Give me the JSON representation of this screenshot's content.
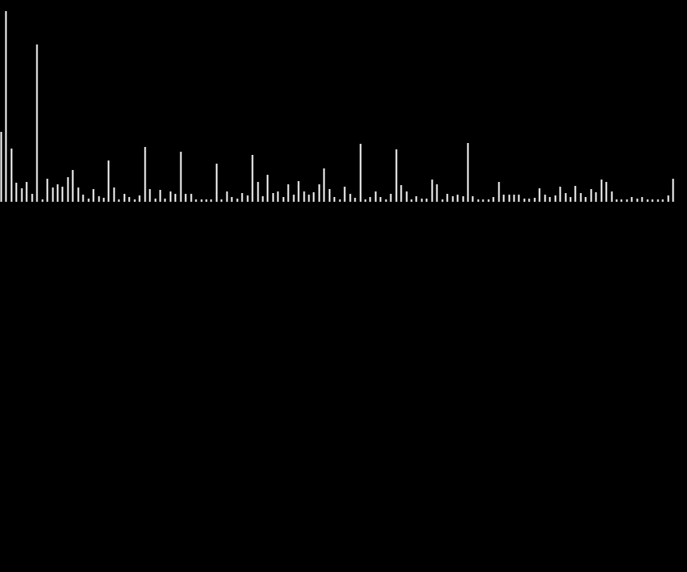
{
  "chart_data": {
    "type": "bar",
    "style": "spectrum-lines",
    "title": "",
    "xlabel": "",
    "ylabel": "",
    "grid": false,
    "axes_visible": false,
    "colors": {
      "background": "#000000",
      "bar": "#ffffff"
    },
    "ylim": [
      0,
      242
    ],
    "values": [
      88,
      240,
      67,
      24,
      17,
      25,
      10,
      198,
      3,
      29,
      18,
      22,
      19,
      31,
      40,
      18,
      9,
      4,
      16,
      7,
      5,
      52,
      18,
      3,
      10,
      6,
      3,
      8,
      69,
      16,
      4,
      15,
      4,
      13,
      10,
      63,
      10,
      10,
      3,
      3,
      3,
      3,
      48,
      3,
      13,
      6,
      4,
      11,
      8,
      59,
      25,
      7,
      34,
      11,
      13,
      6,
      22,
      9,
      26,
      13,
      9,
      12,
      22,
      42,
      16,
      6,
      3,
      19,
      10,
      5,
      73,
      3,
      6,
      13,
      6,
      3,
      10,
      66,
      21,
      13,
      3,
      7,
      4,
      4,
      28,
      22,
      3,
      10,
      7,
      9,
      7,
      74,
      7,
      3,
      3,
      3,
      6,
      25,
      9,
      9,
      9,
      9,
      4,
      4,
      5,
      17,
      9,
      6,
      8,
      19,
      11,
      6,
      20,
      11,
      6,
      16,
      12,
      28,
      25,
      13,
      3,
      3,
      3,
      6,
      4,
      6,
      3,
      3,
      3,
      3,
      8,
      29
    ]
  }
}
